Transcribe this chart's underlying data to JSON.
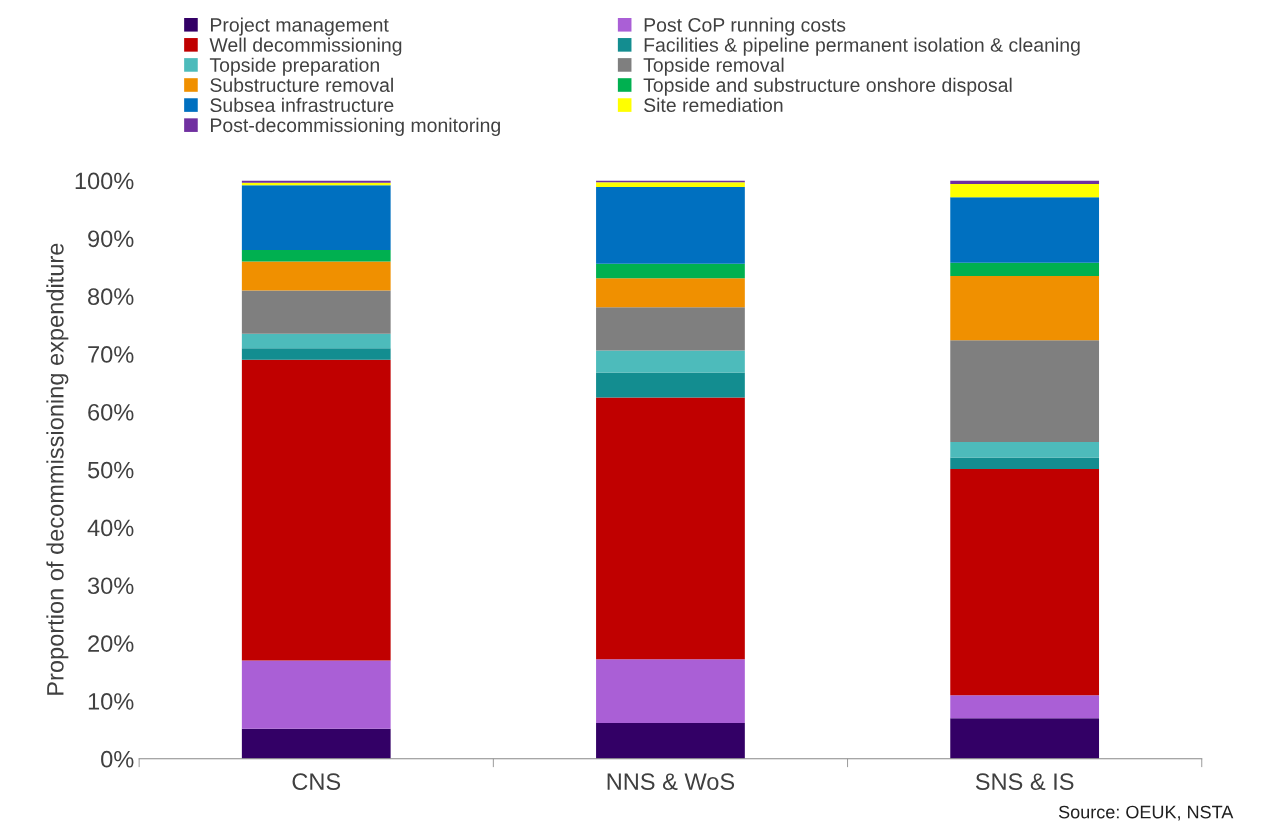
{
  "chart_data": {
    "type": "bar",
    "stacked": true,
    "ylabel": "Proportion of decommissioning expenditure",
    "categories": [
      "CNS",
      "NNS & WoS",
      "SNS & IS"
    ],
    "series": [
      {
        "name": "Project management",
        "color": "#330066",
        "values": [
          5.2,
          6.2,
          7
        ]
      },
      {
        "name": "Post CoP running costs",
        "color": "#aa5fd6",
        "values": [
          11.8,
          11,
          4
        ]
      },
      {
        "name": "Well decommissioning",
        "color": "#c00000",
        "values": [
          52,
          45.3,
          39.1
        ]
      },
      {
        "name": "Facilities & pipeline permanent isolation & cleaning",
        "color": "#138d90",
        "values": [
          2,
          4.3,
          2
        ]
      },
      {
        "name": "Topside preparation",
        "color": "#4dbbbb",
        "values": [
          2.5,
          3.8,
          2.7
        ]
      },
      {
        "name": "Topside removal",
        "color": "#7f7f7f",
        "values": [
          7.5,
          7.5,
          17.6
        ]
      },
      {
        "name": "Substructure removal",
        "color": "#f09000",
        "values": [
          5,
          5,
          11.1
        ]
      },
      {
        "name": "Topside and substructure onshore disposal",
        "color": "#00b050",
        "values": [
          2,
          2.5,
          2.3
        ]
      },
      {
        "name": "Subsea infrastructure",
        "color": "#0070c0",
        "values": [
          11.2,
          13.3,
          11.3
        ]
      },
      {
        "name": "Site remediation",
        "color": "#ffff00",
        "values": [
          0.4,
          0.8,
          2.3
        ]
      },
      {
        "name": "Post-decommissioning monitoring",
        "color": "#7030a0",
        "values": [
          0.4,
          0.3,
          0.6
        ]
      }
    ],
    "ylim": [
      0,
      100
    ],
    "yticks": [
      {
        "value": 0,
        "label": "0%"
      },
      {
        "value": 10,
        "label": "10%"
      },
      {
        "value": 20,
        "label": "20%"
      },
      {
        "value": 30,
        "label": "30%"
      },
      {
        "value": 40,
        "label": "40%"
      },
      {
        "value": 50,
        "label": "50%"
      },
      {
        "value": 60,
        "label": "60%"
      },
      {
        "value": 70,
        "label": "70%"
      },
      {
        "value": 80,
        "label": "80%"
      },
      {
        "value": 90,
        "label": "90%"
      },
      {
        "value": 100,
        "label": "100%"
      }
    ],
    "grid": false,
    "legend": "top",
    "annotations": [
      "Source: OEUK, NSTA"
    ]
  }
}
